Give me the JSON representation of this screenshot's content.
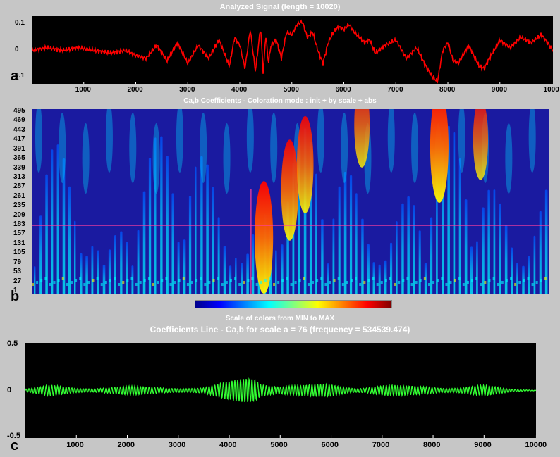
{
  "titles": {
    "signal": "Analyzed Signal  (length = 10020)",
    "coefficients": "Ca,b Coefficients  - Coloration mode : init + by scale + abs",
    "colorbar": "Scale of colors from MIN to MAX",
    "line": "Coefficients Line - Ca,b   for scale a = 76  (frequency = 534539.474)"
  },
  "panel_labels": [
    "a",
    "b",
    "c"
  ],
  "colors": {
    "signal": "#ff0000",
    "coef_line": "#33ff33",
    "marker": "#ff3fa0",
    "background": "#c6c6c6"
  },
  "chart_data": [
    {
      "type": "line",
      "title": "Analyzed Signal  (length = 10020)",
      "xlim": [
        0,
        10020
      ],
      "ylim": [
        -0.12,
        0.12
      ],
      "xticks": [
        "1000",
        "2000",
        "3000",
        "4000",
        "5000",
        "6000",
        "7000",
        "8000",
        "9000",
        "1000"
      ],
      "yticks": [
        "0.1",
        "0",
        "0.1"
      ],
      "series": [
        {
          "x": [
            0,
            300,
            600,
            900,
            1200,
            1500,
            1800,
            2000,
            2200,
            2400,
            2600,
            2800,
            3000,
            3200,
            3400,
            3600,
            3800,
            3900,
            4000,
            4100,
            4200,
            4300,
            4400,
            4450,
            4500,
            4550,
            4600,
            4700,
            4800,
            4900,
            5000,
            5100,
            5200,
            5300,
            5400,
            5500,
            5600,
            5700,
            5800,
            5900,
            6000,
            6100,
            6200,
            6300,
            6400,
            6500,
            6600,
            6800,
            7000,
            7200,
            7400,
            7600,
            7700,
            7800,
            7900,
            8000,
            8100,
            8200,
            8400,
            8600,
            8700,
            8800,
            9000,
            9200,
            9400,
            9600,
            9800,
            10020
          ],
          "y": [
            0.0,
            0.01,
            0.0,
            0.01,
            0.0,
            -0.01,
            0.0,
            -0.02,
            -0.03,
            0.02,
            -0.04,
            0.03,
            -0.05,
            0.02,
            -0.03,
            0.04,
            -0.06,
            0.05,
            0.02,
            -0.07,
            0.08,
            -0.08,
            0.09,
            -0.09,
            0.06,
            -0.05,
            0.02,
            0.04,
            -0.03,
            0.07,
            0.06,
            0.1,
            0.11,
            0.05,
            0.07,
            0.0,
            -0.05,
            0.03,
            0.07,
            0.09,
            0.08,
            0.1,
            0.07,
            0.05,
            0.03,
            0.04,
            -0.01,
            0.02,
            0.04,
            -0.03,
            0.01,
            -0.07,
            -0.1,
            -0.12,
            0.0,
            0.03,
            -0.04,
            -0.05,
            0.02,
            -0.06,
            -0.07,
            -0.03,
            0.04,
            0.01,
            0.05,
            0.03,
            0.06,
            0.0
          ]
        }
      ]
    },
    {
      "type": "heatmap",
      "title": "Ca,b Coefficients  - Coloration mode : init + by scale + abs",
      "xlim": [
        0,
        10020
      ],
      "yticks": [
        "495",
        "469",
        "443",
        "417",
        "391",
        "365",
        "339",
        "313",
        "287",
        "261",
        "235",
        "209",
        "183",
        "157",
        "131",
        "105",
        "79",
        "53",
        "27",
        "1"
      ],
      "selected_scale_line": 183,
      "selected_position": 4250,
      "colorbar_label": "Scale of colors from MIN to MAX",
      "hotspots": [
        {
          "x": 4500,
          "scale": 150,
          "intensity": 1.0
        },
        {
          "x": 5000,
          "scale": 280,
          "intensity": 0.85
        },
        {
          "x": 5300,
          "scale": 350,
          "intensity": 0.8
        },
        {
          "x": 7900,
          "scale": 400,
          "intensity": 1.0
        },
        {
          "x": 8700,
          "scale": 420,
          "intensity": 0.6
        },
        {
          "x": 6400,
          "scale": 460,
          "intensity": 0.65
        }
      ]
    },
    {
      "type": "line",
      "title": "Coefficients Line - Ca,b   for scale a = 76  (frequency = 534539.474)",
      "xlim": [
        0,
        10020
      ],
      "ylim": [
        -0.5,
        0.5
      ],
      "xticks": [
        "1000",
        "2000",
        "3000",
        "4000",
        "5000",
        "6000",
        "7000",
        "8000",
        "9000",
        "10000"
      ],
      "yticks": [
        "0.5",
        "0",
        "-0.5"
      ],
      "series": [
        {
          "envelope_x": [
            0,
            500,
            1000,
            1500,
            2000,
            2500,
            3000,
            3500,
            4000,
            4200,
            4400,
            4500,
            4600,
            4800,
            5000,
            5500,
            6000,
            6500,
            7000,
            7500,
            8000,
            8500,
            9000,
            9500,
            10020
          ],
          "envelope_y": [
            0.02,
            0.06,
            0.04,
            0.05,
            0.05,
            0.04,
            0.05,
            0.04,
            0.1,
            0.14,
            0.2,
            0.22,
            0.16,
            0.12,
            0.08,
            0.06,
            0.08,
            0.05,
            0.07,
            0.05,
            0.06,
            0.05,
            0.06,
            0.02,
            0.01
          ]
        }
      ]
    }
  ]
}
